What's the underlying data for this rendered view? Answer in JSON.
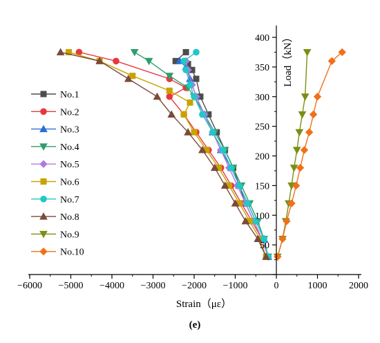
{
  "chart_data": {
    "type": "line",
    "panel_label": "(e)",
    "xlabel": "Strain（με）",
    "ylabel": "Load（kN）",
    "xlim": [
      -6000,
      2000
    ],
    "ylim": [
      0,
      420
    ],
    "xticks": [
      -6000,
      -5000,
      -4000,
      -3000,
      -2000,
      -1000,
      0,
      1000,
      2000
    ],
    "xtick_labels": [
      "−6000",
      "−5000",
      "−4000",
      "−3000",
      "−2000",
      "−1000",
      "0",
      "1000",
      "2000"
    ],
    "yticks": [
      0,
      50,
      100,
      150,
      200,
      250,
      300,
      350,
      400
    ],
    "ytick_labels": [
      "0",
      "50",
      "100",
      "150",
      "200",
      "250",
      "300",
      "350",
      "400"
    ],
    "legend_position": "left",
    "grid": false,
    "series": [
      {
        "name": "No.1",
        "color": "#4d4d4d",
        "marker": "square",
        "x": [
          -200,
          -350,
          -550,
          -750,
          -900,
          -1050,
          -1250,
          -1450,
          -1650,
          -1850,
          -1950,
          -2050,
          -2150,
          -2450,
          -2200
        ],
        "y": [
          30,
          60,
          90,
          120,
          150,
          180,
          210,
          240,
          270,
          300,
          330,
          345,
          355,
          360,
          375
        ]
      },
      {
        "name": "No.2",
        "color": "#e8383d",
        "marker": "circle",
        "x": [
          -200,
          -350,
          -600,
          -850,
          -1100,
          -1350,
          -1650,
          -1950,
          -2250,
          -2600,
          -2200,
          -2600,
          -3900,
          -4800
        ],
        "y": [
          30,
          60,
          90,
          120,
          150,
          180,
          210,
          240,
          270,
          300,
          315,
          330,
          360,
          375
        ]
      },
      {
        "name": "No.3",
        "color": "#2a6fd6",
        "marker": "triangle-up",
        "x": [
          -200,
          -300,
          -500,
          -700,
          -900,
          -1100,
          -1350,
          -1550,
          -1750,
          -1950,
          -2100,
          -2200,
          -2350
        ],
        "y": [
          30,
          60,
          90,
          120,
          150,
          180,
          210,
          240,
          270,
          300,
          330,
          350,
          360
        ]
      },
      {
        "name": "No.4",
        "color": "#2e9e6e",
        "marker": "triangle-down",
        "x": [
          -200,
          -300,
          -450,
          -650,
          -850,
          -1050,
          -1250,
          -1500,
          -1750,
          -2000,
          -2150,
          -2600,
          -3100,
          -3450
        ],
        "y": [
          30,
          60,
          90,
          120,
          150,
          180,
          210,
          240,
          270,
          300,
          315,
          335,
          360,
          375
        ]
      },
      {
        "name": "No.5",
        "color": "#b07ae0",
        "marker": "diamond",
        "x": [
          -200,
          -350,
          -550,
          -750,
          -950,
          -1150,
          -1350,
          -1550,
          -1750,
          -1950,
          -2050,
          -2150,
          -2200
        ],
        "y": [
          30,
          60,
          90,
          120,
          150,
          180,
          210,
          240,
          270,
          300,
          320,
          345,
          360
        ]
      },
      {
        "name": "No.6",
        "color": "#c9a200",
        "marker": "square",
        "x": [
          -250,
          -400,
          -650,
          -900,
          -1150,
          -1400,
          -1700,
          -2000,
          -2250,
          -2100,
          -2600,
          -3500,
          -4300,
          -5050
        ],
        "y": [
          30,
          60,
          90,
          120,
          150,
          180,
          210,
          240,
          270,
          290,
          310,
          335,
          360,
          375
        ]
      },
      {
        "name": "No.7",
        "color": "#22c7c7",
        "marker": "circle",
        "x": [
          -200,
          -300,
          -500,
          -700,
          -900,
          -1100,
          -1300,
          -1550,
          -1800,
          -2000,
          -2100,
          -2200,
          -2250,
          -1950
        ],
        "y": [
          30,
          60,
          90,
          120,
          150,
          180,
          210,
          240,
          270,
          300,
          320,
          345,
          360,
          375
        ]
      },
      {
        "name": "No.8",
        "color": "#7a4a3a",
        "marker": "triangle-up",
        "x": [
          -250,
          -450,
          -750,
          -1000,
          -1250,
          -1500,
          -1800,
          -2150,
          -2550,
          -2900,
          -3600,
          -4300,
          -5250
        ],
        "y": [
          30,
          60,
          90,
          120,
          150,
          180,
          210,
          240,
          270,
          300,
          330,
          360,
          375
        ]
      },
      {
        "name": "No.9",
        "color": "#7a8f14",
        "marker": "triangle-down",
        "x": [
          30,
          150,
          230,
          300,
          370,
          430,
          500,
          560,
          630,
          700,
          750
        ],
        "y": [
          30,
          60,
          90,
          120,
          150,
          180,
          210,
          240,
          270,
          300,
          375
        ]
      },
      {
        "name": "No.10",
        "color": "#f0701a",
        "marker": "diamond",
        "x": [
          30,
          150,
          250,
          370,
          480,
          580,
          680,
          800,
          900,
          1000,
          1350,
          1600
        ],
        "y": [
          30,
          60,
          90,
          120,
          150,
          180,
          210,
          240,
          270,
          300,
          360,
          375
        ]
      }
    ]
  }
}
